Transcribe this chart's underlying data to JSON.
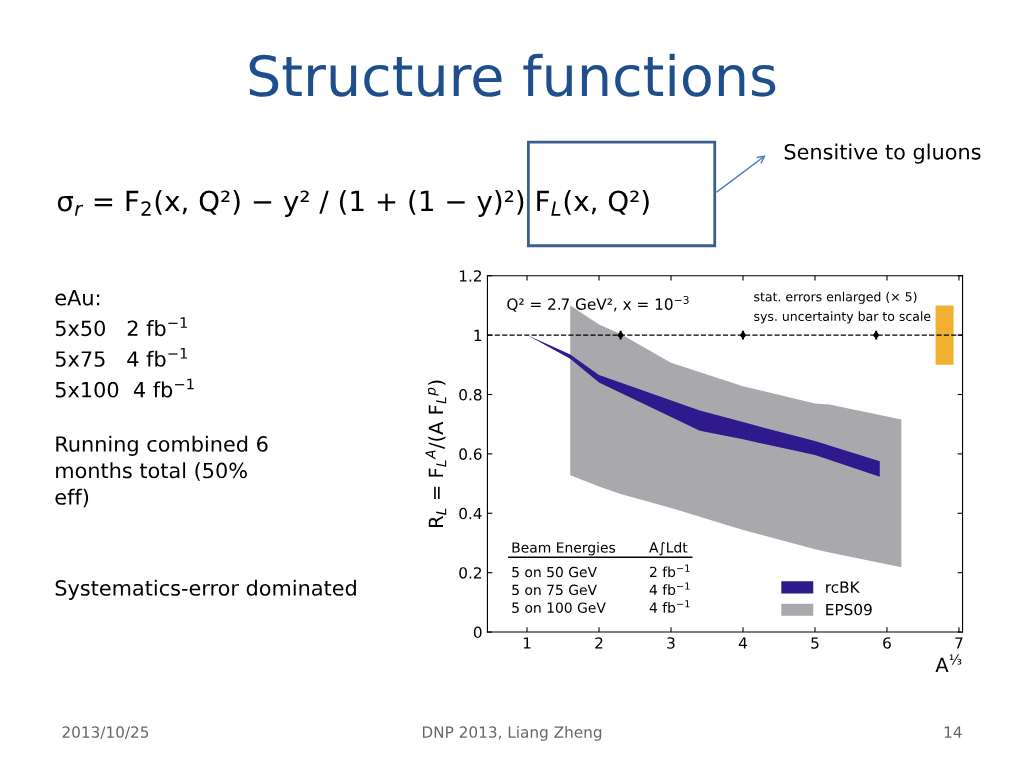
{
  "chart_data": {
    "type": "area",
    "title": "Structure functions",
    "xlabel": "A$^{⅓}$",
    "ylabel": "R$_{L}$ = F$_{L}$$^{A}$/(A F$_{L}$$^{p}$)",
    "xlim": [
      0.45,
      7.05
    ],
    "ylim": [
      0,
      1.2
    ],
    "xticks": [
      1,
      2,
      3,
      4,
      5,
      6,
      7
    ],
    "yticks": [
      0,
      0.2,
      0.4,
      0.6,
      0.8,
      1,
      1.2
    ],
    "grid": false,
    "legend": "bottom right",
    "series": [
      {
        "name": "EPS09",
        "color": "#a9a9ad",
        "x": [
          1.6,
          2,
          2.3,
          3,
          4,
          5,
          5.2,
          6.2
        ],
        "values": [
          null,
          null,
          null,
          null,
          null,
          null,
          null,
          null
        ],
        "lower": [
          0.528,
          0.49,
          0.465,
          0.418,
          0.344,
          0.279,
          0.268,
          0.218
        ],
        "upper": [
          1.1,
          1.036,
          1.004,
          0.907,
          0.828,
          0.77,
          0.766,
          0.716
        ]
      },
      {
        "name": "rcBK",
        "color": "#2e1a8c",
        "x": [
          1,
          1.6,
          2,
          3.4,
          4,
          5,
          5.9
        ],
        "values": [
          null,
          null,
          null,
          null,
          null,
          null,
          null
        ],
        "lower": [
          1.0,
          0.92,
          0.84,
          0.678,
          0.649,
          0.596,
          0.523
        ],
        "upper": [
          1.0,
          0.935,
          0.866,
          0.746,
          0.707,
          0.643,
          0.575
        ]
      },
      {
        "type": "scatter",
        "color": "#000000",
        "marker": "circle",
        "x": [
          2.3,
          4,
          5.85
        ],
        "values": [
          1,
          1,
          1
        ],
        "errors": [
          0.015,
          0.015,
          0.015
        ]
      },
      {
        "type": "bar",
        "color": "#f0b030",
        "x": [
          6.8
        ],
        "base": [
          0.9
        ],
        "values": [
          0.2
        ]
      }
    ],
    "ref_lines": [
      {
        "axis": "y",
        "value": 1,
        "color": "#000000",
        "line_style": "dashed"
      }
    ],
    "annotations": [
      "Q² = 2.7 GeV², x = 10$^{−3}$",
      "stat. errors enlarged (× 5)",
      "sys. uncertainty bar to scale",
      "Beam Energies",
      "A∫Ldt",
      "5 on 50 GeV",
      "2 fb$^{−1}$",
      "5 on 75 GeV",
      "4 fb$^{−1}$",
      "5 on 100 GeV",
      "4 fb$^{−1}$",
      "σ$_{r}$ = F$_{2}$(x, Q²) − y² / (1 + (1 − y)²) F$_{L}$(x, Q²)",
      "Sensitive to gluons",
      "eAu:",
      "5x50   2 fb$^{−1}$",
      "5x75   4 fb$^{−1}$",
      "5x100  4 fb$^{−1}$",
      "Running combined 6\nmonths total (50%\neff)",
      "Systematics-error dominated",
      "2013/10/25",
      "DNP 2013, Liang Zheng",
      "14"
    ]
  }
}
